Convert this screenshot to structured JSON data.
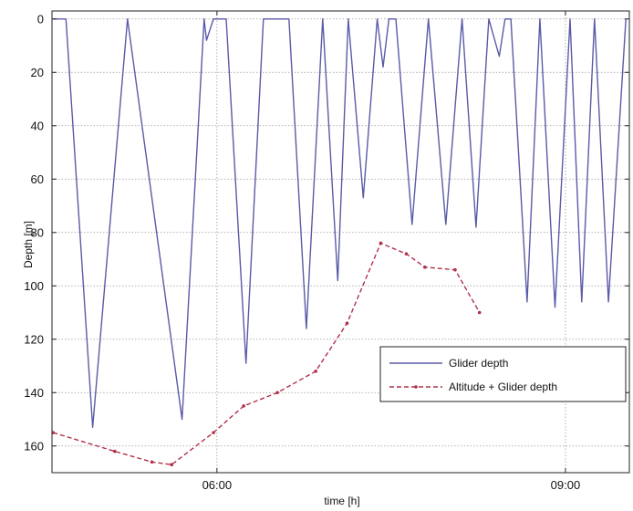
{
  "chart_data": {
    "type": "line",
    "title": "",
    "xlabel": "time [h]",
    "ylabel": "Depth [m]",
    "x_unit": "hours of day",
    "xlim": [
      4.58,
      9.55
    ],
    "ylim": [
      170,
      -3
    ],
    "y_reversed": true,
    "grid": true,
    "xticks": [
      6,
      9
    ],
    "xtick_labels": [
      "06:00",
      "09:00"
    ],
    "yticks": [
      0,
      20,
      40,
      60,
      80,
      100,
      120,
      140,
      160
    ],
    "ytick_labels": [
      "0",
      "20",
      "40",
      "60",
      "80",
      "100",
      "120",
      "140",
      "160"
    ],
    "legend_position": "lower-right",
    "series": [
      {
        "name": "Glider depth",
        "color": "#5a5aa8",
        "style": "solid",
        "x": [
          4.59,
          4.7,
          4.93,
          5.23,
          5.7,
          5.89,
          5.91,
          5.97,
          6.08,
          6.25,
          6.4,
          6.62,
          6.77,
          6.91,
          7.04,
          7.13,
          7.26,
          7.38,
          7.43,
          7.48,
          7.54,
          7.68,
          7.82,
          7.97,
          8.11,
          8.23,
          8.34,
          8.43,
          8.48,
          8.53,
          8.67,
          8.78,
          8.91,
          9.04,
          9.14,
          9.25,
          9.37,
          9.52
        ],
        "y": [
          0,
          0,
          153,
          0,
          150,
          0,
          8,
          0,
          0,
          129,
          0,
          0,
          116,
          0,
          98,
          0,
          67,
          0,
          18,
          0,
          0,
          77,
          0,
          77,
          0,
          78,
          0,
          14,
          0,
          0,
          106,
          0,
          108,
          0,
          106,
          0,
          106,
          0
        ]
      },
      {
        "name": "Altitude + Glider depth",
        "color": "#b0304a",
        "style": "dashed",
        "markers": true,
        "x": [
          4.59,
          5.12,
          5.44,
          5.61,
          5.97,
          6.23,
          6.52,
          6.85,
          7.12,
          7.41,
          7.63,
          7.79,
          8.05,
          8.26
        ],
        "y": [
          155,
          162,
          166,
          167,
          155,
          145,
          140,
          132,
          114,
          84,
          88,
          93,
          94,
          110
        ]
      }
    ]
  }
}
